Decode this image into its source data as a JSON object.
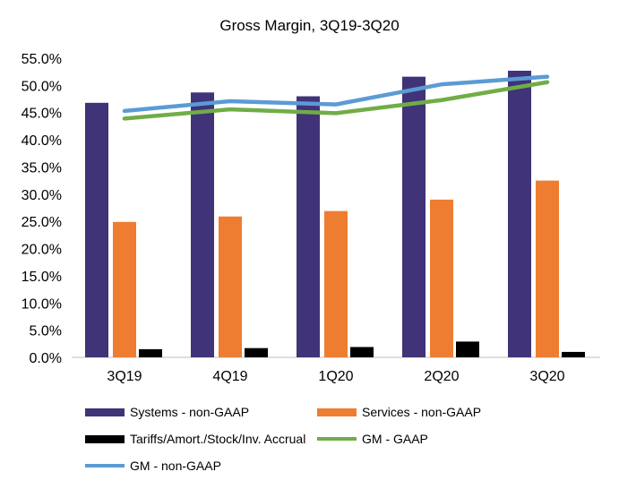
{
  "chart_data": {
    "type": "bar",
    "title": "Gross Margin,  3Q19-3Q20",
    "categories": [
      "3Q19",
      "4Q19",
      "1Q20",
      "2Q20",
      "3Q20"
    ],
    "ylim": [
      0,
      55
    ],
    "yticks": [
      "0.0%",
      "5.0%",
      "10.0%",
      "15.0%",
      "20.0%",
      "25.0%",
      "30.0%",
      "35.0%",
      "40.0%",
      "45.0%",
      "50.0%",
      "55.0%"
    ],
    "bar_series": [
      {
        "name": "Systems - non-GAAP",
        "color": "#403378",
        "values": [
          46.8,
          48.7,
          48.0,
          51.6,
          52.7
        ]
      },
      {
        "name": "Services - non-GAAP",
        "color": "#ee7d31",
        "values": [
          24.9,
          25.9,
          26.9,
          29.0,
          32.5
        ]
      },
      {
        "name": "Tariffs/Amort./Stock/Inv. Accrual",
        "color": "#000000",
        "values": [
          1.5,
          1.7,
          1.9,
          2.9,
          1.0
        ]
      }
    ],
    "line_series": [
      {
        "name": "GM  - GAAP",
        "color": "#70ad47",
        "values": [
          43.9,
          45.6,
          44.9,
          47.3,
          50.6
        ]
      },
      {
        "name": "GM  - non-GAAP",
        "color": "#5b9bd5",
        "values": [
          45.3,
          47.1,
          46.5,
          50.2,
          51.6
        ]
      }
    ],
    "xlabel": "",
    "ylabel": "",
    "grid": false,
    "legend_position": "bottom"
  }
}
